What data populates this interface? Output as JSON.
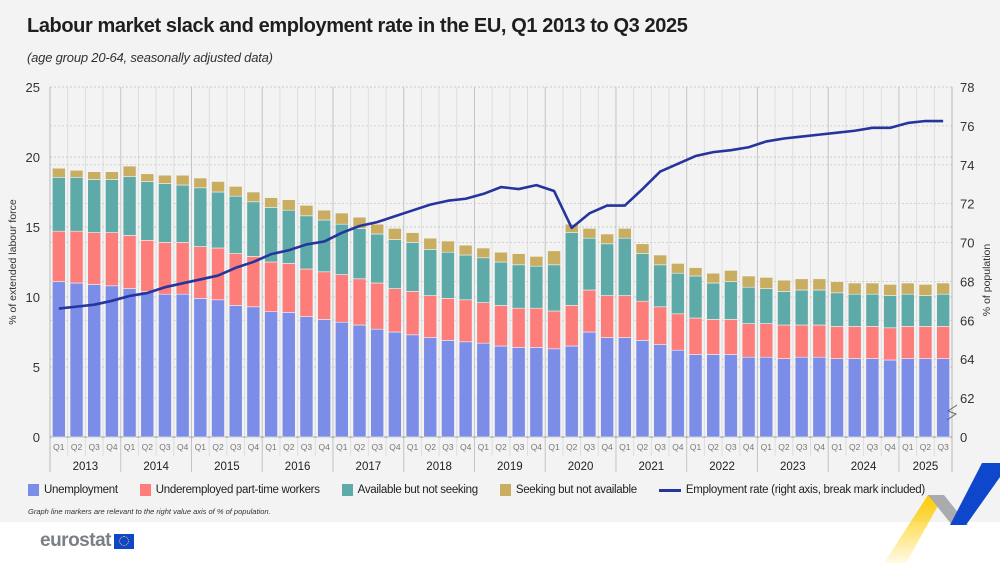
{
  "title": "Labour market slack and employment rate in the EU, Q1 2013 to Q3 2025",
  "subtitle": "(age group 20-64, seasonally adjusted data)",
  "note": "Graph line markers are relevant to the right value axis of % of population.",
  "logo_text": "eurostat",
  "chart_data": {
    "type": "bar",
    "stacked": true,
    "title": "Labour market slack and employment rate in the EU, Q1 2013 to Q3 2025",
    "ylabel": "% of extended labour force",
    "y2label": "% of population",
    "ylim": [
      0,
      25
    ],
    "yticks": [
      0,
      5,
      10,
      15,
      20,
      25
    ],
    "y2lim": [
      62,
      78
    ],
    "y2ticks": [
      62,
      64,
      66,
      68,
      70,
      72,
      74,
      76,
      78
    ],
    "y2_zero_label": "0",
    "y2_break": true,
    "grid": true,
    "legend": "bottom",
    "years": [
      "2013",
      "2014",
      "2015",
      "2016",
      "2017",
      "2018",
      "2019",
      "2020",
      "2021",
      "2022",
      "2023",
      "2024",
      "2025"
    ],
    "quarters": [
      "Q1",
      "Q2",
      "Q3",
      "Q4",
      "Q1",
      "Q2",
      "Q3",
      "Q4",
      "Q1",
      "Q2",
      "Q3",
      "Q4",
      "Q1",
      "Q2",
      "Q3",
      "Q4",
      "Q1",
      "Q2",
      "Q3",
      "Q4",
      "Q1",
      "Q2",
      "Q3",
      "Q4",
      "Q1",
      "Q2",
      "Q3",
      "Q4",
      "Q1",
      "Q2",
      "Q3",
      "Q4",
      "Q1",
      "Q2",
      "Q3",
      "Q4",
      "Q1",
      "Q2",
      "Q3",
      "Q4",
      "Q1",
      "Q2",
      "Q3",
      "Q4",
      "Q1",
      "Q2",
      "Q3",
      "Q4",
      "Q1",
      "Q2",
      "Q3"
    ],
    "series": [
      {
        "name": "Unemployment",
        "color": "#7b8de6",
        "type": "bar",
        "values": [
          11.1,
          11.0,
          10.9,
          10.8,
          10.6,
          10.4,
          10.2,
          10.2,
          9.9,
          9.8,
          9.4,
          9.3,
          8.95,
          8.9,
          8.6,
          8.4,
          8.2,
          8.0,
          7.7,
          7.5,
          7.3,
          7.1,
          6.9,
          6.8,
          6.7,
          6.5,
          6.4,
          6.4,
          6.3,
          6.5,
          7.5,
          7.1,
          7.1,
          6.9,
          6.6,
          6.2,
          5.9,
          5.9,
          5.9,
          5.7,
          5.7,
          5.6,
          5.7,
          5.7,
          5.6,
          5.6,
          5.6,
          5.5,
          5.6,
          5.6,
          5.6
        ]
      },
      {
        "name": "Underemployed part-time workers",
        "color": "#fd7d7a",
        "type": "bar",
        "values": [
          3.6,
          3.7,
          3.7,
          3.8,
          3.8,
          3.65,
          3.7,
          3.7,
          3.7,
          3.7,
          3.7,
          3.6,
          3.55,
          3.5,
          3.4,
          3.4,
          3.4,
          3.3,
          3.3,
          3.1,
          3.1,
          3.0,
          3.0,
          3.0,
          2.9,
          2.9,
          2.8,
          2.8,
          2.7,
          2.9,
          3.0,
          3.0,
          3.0,
          2.8,
          2.7,
          2.6,
          2.6,
          2.5,
          2.5,
          2.4,
          2.4,
          2.4,
          2.3,
          2.3,
          2.3,
          2.3,
          2.3,
          2.3,
          2.3,
          2.3,
          2.3
        ]
      },
      {
        "name": "Available but not seeking",
        "color": "#5eaaa8",
        "type": "bar",
        "values": [
          3.85,
          3.85,
          3.8,
          3.8,
          4.2,
          4.2,
          4.2,
          4.1,
          4.2,
          4.0,
          4.1,
          3.9,
          3.9,
          3.8,
          3.8,
          3.7,
          3.6,
          3.6,
          3.5,
          3.5,
          3.5,
          3.3,
          3.3,
          3.2,
          3.2,
          3.1,
          3.1,
          3.0,
          3.3,
          5.2,
          3.7,
          3.7,
          4.1,
          3.4,
          3.0,
          2.9,
          3.0,
          2.6,
          2.7,
          2.6,
          2.5,
          2.4,
          2.5,
          2.5,
          2.4,
          2.3,
          2.3,
          2.3,
          2.3,
          2.2,
          2.3
        ]
      },
      {
        "name": "Seeking but not available",
        "color": "#c9ae62",
        "type": "bar",
        "values": [
          0.65,
          0.5,
          0.55,
          0.55,
          0.75,
          0.55,
          0.6,
          0.7,
          0.7,
          0.75,
          0.7,
          0.7,
          0.7,
          0.75,
          0.75,
          0.7,
          0.8,
          0.8,
          0.7,
          0.8,
          0.7,
          0.8,
          0.8,
          0.7,
          0.7,
          0.7,
          0.8,
          0.7,
          1.0,
          0.6,
          0.7,
          0.7,
          0.7,
          0.7,
          0.7,
          0.7,
          0.6,
          0.7,
          0.8,
          0.8,
          0.8,
          0.8,
          0.8,
          0.8,
          0.8,
          0.8,
          0.8,
          0.8,
          0.8,
          0.8,
          0.8
        ]
      },
      {
        "name": "Employment rate (right axis, break mark included)",
        "color": "#26359b",
        "type": "line",
        "axis": "right",
        "values": [
          66.6,
          66.7,
          66.8,
          67.0,
          67.25,
          67.4,
          67.7,
          67.9,
          68.1,
          68.3,
          68.7,
          69.0,
          69.4,
          69.6,
          69.9,
          70.05,
          70.5,
          70.85,
          71.05,
          71.35,
          71.65,
          71.95,
          72.15,
          72.25,
          72.5,
          72.85,
          72.75,
          72.95,
          72.65,
          70.75,
          71.5,
          71.9,
          71.9,
          72.75,
          73.65,
          74.05,
          74.45,
          74.65,
          74.75,
          74.9,
          75.2,
          75.35,
          75.45,
          75.55,
          75.65,
          75.75,
          75.9,
          75.9,
          76.15,
          76.25,
          76.25
        ]
      }
    ]
  }
}
